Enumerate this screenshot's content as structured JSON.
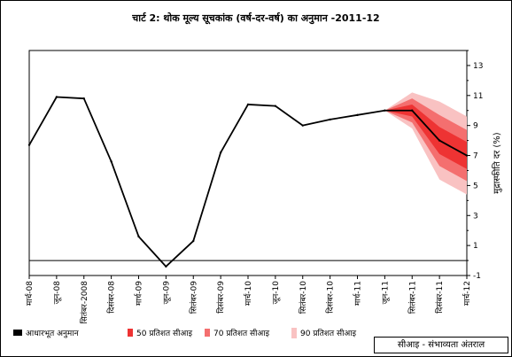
{
  "title": "चार्ट 2: थोक मूल्य सूचकांक (वर्ष-दर-वर्ष) का अनुमान  -2011-12",
  "legend": {
    "baseline": "आधारभूत अनुमान",
    "ci50": "50 प्रतिशत सीआइ",
    "ci70": "70 प्रतिशत सीआइ",
    "ci90": "90 प्रतिशत सीआइ",
    "ci_note": "सीआइ - संभाव्यता अंतराल"
  },
  "colors": {
    "line": "#000000",
    "ci50": "#ee3333",
    "ci70": "#f46f6f",
    "ci90": "#f9c2c2"
  },
  "chart_data": {
    "type": "line",
    "title": "चार्ट 2: थोक मूल्य सूचकांक (वर्ष-दर-वर्ष) का अनुमान  -2011-12",
    "ylabel": "मुद्रास्फीति दर (%)",
    "xlabel": "",
    "ylim": [
      -1,
      14
    ],
    "yticks": [
      -1,
      1,
      3,
      5,
      7,
      9,
      11,
      13
    ],
    "y_axis_side": "right",
    "categories": [
      "मार्च-08",
      "जून-08",
      "सितंबर-2008",
      "दिसंबर-08",
      "मार्च-09",
      "जून-09",
      "सितंबर-09",
      "दिसंबर-09",
      "मार्च-10",
      "जून-10",
      "सितंबर-10",
      "दिसंबर-10",
      "मार्च-11",
      "जून-11",
      "सितंबर-11",
      "दिसंबर-11",
      "मार्च-12"
    ],
    "series": [
      {
        "name": "आधारभूत अनुमान",
        "values": [
          7.7,
          10.9,
          10.8,
          6.6,
          1.6,
          -0.4,
          1.3,
          7.2,
          10.4,
          10.3,
          9.0,
          9.4,
          9.7,
          10.0,
          10.0,
          8.0,
          7.0
        ]
      }
    ],
    "fan": {
      "start_index": 13,
      "ci90": {
        "upper": [
          10.0,
          11.2,
          10.6,
          9.6
        ],
        "lower": [
          10.0,
          8.8,
          5.4,
          4.4
        ]
      },
      "ci70": {
        "upper": [
          10.0,
          10.8,
          9.7,
          8.7
        ],
        "lower": [
          10.0,
          9.2,
          6.3,
          5.3
        ]
      },
      "ci50": {
        "upper": [
          10.0,
          10.4,
          8.9,
          7.9
        ],
        "lower": [
          10.0,
          9.6,
          7.1,
          6.1
        ]
      }
    },
    "zero_line": 0,
    "grid": false,
    "legend_position": "bottom"
  }
}
